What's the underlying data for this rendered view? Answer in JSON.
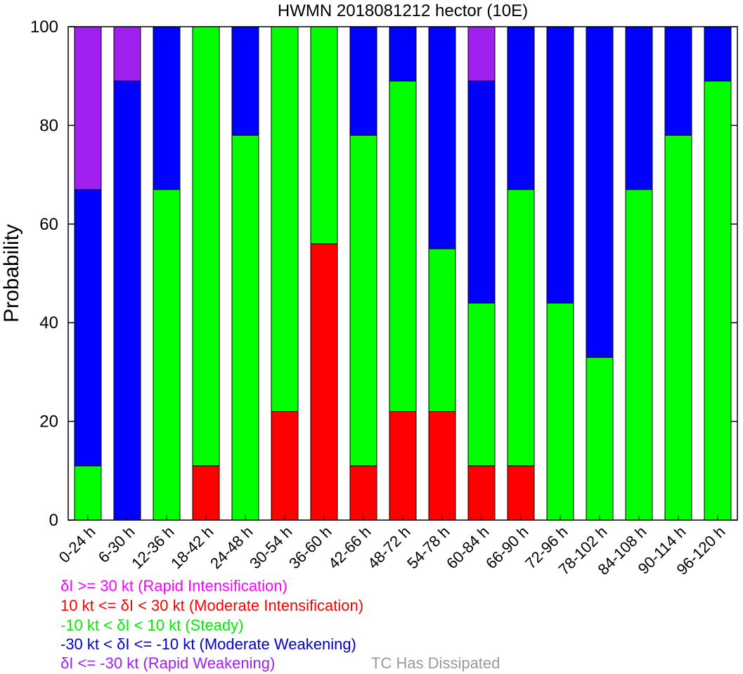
{
  "chart_data": {
    "type": "bar",
    "stacked": true,
    "title": "HWMN 2018081212 hector (10E)",
    "xlabel": "",
    "ylabel": "Probability",
    "ylim": [
      0,
      100
    ],
    "yticks": [
      0,
      20,
      40,
      60,
      80,
      100
    ],
    "grid": false,
    "categories": [
      "0-24 h",
      "6-30 h",
      "12-36 h",
      "18-42 h",
      "24-48 h",
      "30-54 h",
      "36-60 h",
      "42-66 h",
      "48-72 h",
      "54-78 h",
      "60-84 h",
      "66-90 h",
      "72-96 h",
      "78-102 h",
      "84-108 h",
      "90-114 h",
      "96-120 h"
    ],
    "series": [
      {
        "name": "Moderate Intensification",
        "color": "#ff0000",
        "values": [
          0,
          0,
          0,
          11,
          0,
          22,
          56,
          11,
          22,
          22,
          11,
          11,
          0,
          0,
          0,
          0,
          0
        ]
      },
      {
        "name": "Steady",
        "color": "#00ff00",
        "values": [
          11,
          0,
          67,
          89,
          78,
          78,
          44,
          67,
          67,
          33,
          33,
          56,
          44,
          33,
          67,
          78,
          89
        ]
      },
      {
        "name": "Moderate Weakening",
        "color": "#0000ff",
        "values": [
          56,
          89,
          33,
          0,
          22,
          0,
          0,
          22,
          11,
          45,
          45,
          33,
          56,
          67,
          33,
          22,
          11
        ]
      },
      {
        "name": "Rapid Weakening",
        "color": "#a020f0",
        "values": [
          33,
          11,
          0,
          0,
          0,
          0,
          0,
          0,
          0,
          0,
          11,
          0,
          0,
          0,
          0,
          0,
          0
        ]
      }
    ],
    "legend": [
      {
        "text": "δI >= 30 kt (Rapid Intensification)",
        "color": "#ff00ff"
      },
      {
        "text": "10 kt <= δI < 30 kt (Moderate Intensification)",
        "color": "#ff0000"
      },
      {
        "text": "-10 kt < δI < 10 kt (Steady)",
        "color": "#00ee00"
      },
      {
        "text": "-30 kt < δI <= -10 kt (Moderate Weakening)",
        "color": "#0000cc"
      },
      {
        "text": "δI <= -30 kt (Rapid Weakening)",
        "color": "#a020f0"
      },
      {
        "text": "TC Has Dissipated",
        "color": "#999999"
      }
    ],
    "legend_placement": "bottom-left"
  }
}
